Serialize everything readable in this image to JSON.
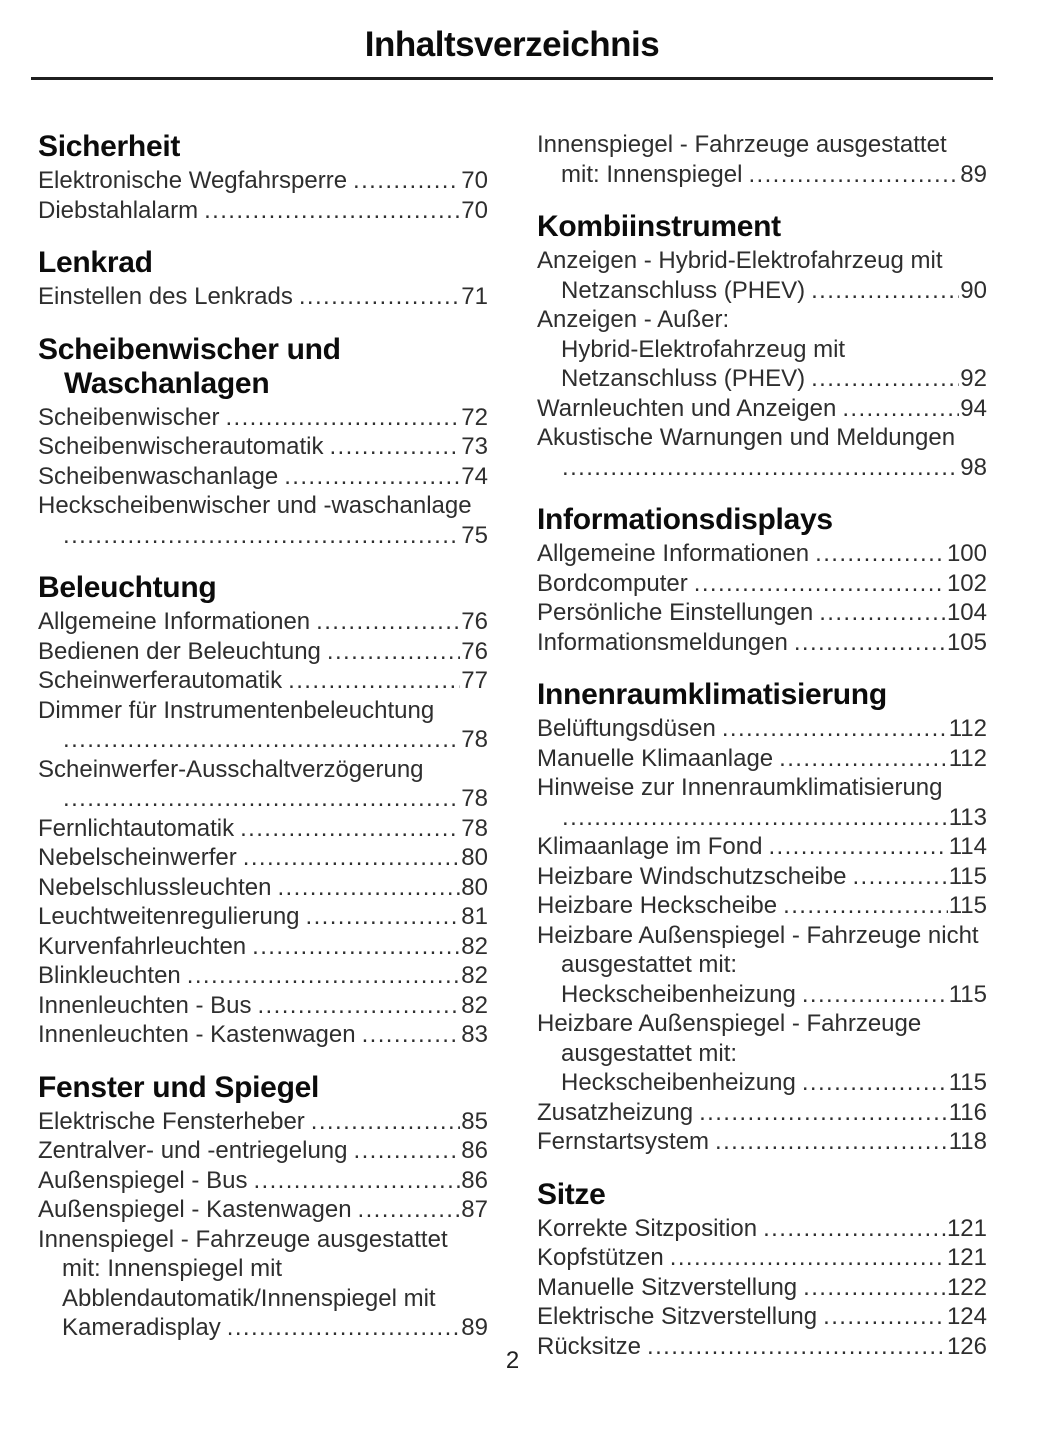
{
  "title": "Inhaltsverzeichnis",
  "page_number": "2",
  "columns": [
    {
      "sections": [
        {
          "heading_lines": [
            "Sicherheit"
          ],
          "entries": [
            {
              "lines": [
                "Elektronische Wegfahrsperre"
              ],
              "page": "70"
            },
            {
              "lines": [
                "Diebstahlalarm"
              ],
              "page": "70"
            }
          ]
        },
        {
          "heading_lines": [
            "Lenkrad"
          ],
          "entries": [
            {
              "lines": [
                "Einstellen des Lenkrads"
              ],
              "page": "71"
            }
          ]
        },
        {
          "heading_lines": [
            "Scheibenwischer und",
            "Waschanlagen"
          ],
          "entries": [
            {
              "lines": [
                "Scheibenwischer"
              ],
              "page": "72"
            },
            {
              "lines": [
                "Scheibenwischerautomatik"
              ],
              "page": "73"
            },
            {
              "lines": [
                "Scheibenwaschanlage"
              ],
              "page": "74"
            },
            {
              "lines": [
                "Heckscheibenwischer und -waschanlage",
                ""
              ],
              "page": "75"
            }
          ]
        },
        {
          "heading_lines": [
            "Beleuchtung"
          ],
          "entries": [
            {
              "lines": [
                "Allgemeine Informationen"
              ],
              "page": "76"
            },
            {
              "lines": [
                "Bedienen der Beleuchtung"
              ],
              "page": "76"
            },
            {
              "lines": [
                "Scheinwerferautomatik"
              ],
              "page": "77"
            },
            {
              "lines": [
                "Dimmer für Instrumentenbeleuchtung",
                ""
              ],
              "page": "78"
            },
            {
              "lines": [
                "Scheinwerfer-Ausschaltverzögerung",
                ""
              ],
              "page": "78"
            },
            {
              "lines": [
                "Fernlichtautomatik"
              ],
              "page": "78"
            },
            {
              "lines": [
                "Nebelscheinwerfer"
              ],
              "page": "80"
            },
            {
              "lines": [
                "Nebelschlussleuchten"
              ],
              "page": "80"
            },
            {
              "lines": [
                "Leuchtweitenregulierung"
              ],
              "page": "81"
            },
            {
              "lines": [
                "Kurvenfahrleuchten"
              ],
              "page": "82"
            },
            {
              "lines": [
                "Blinkleuchten"
              ],
              "page": "82"
            },
            {
              "lines": [
                "Innenleuchten - Bus"
              ],
              "page": "82"
            },
            {
              "lines": [
                "Innenleuchten - Kastenwagen"
              ],
              "page": "83"
            }
          ]
        },
        {
          "heading_lines": [
            "Fenster und Spiegel"
          ],
          "entries": [
            {
              "lines": [
                "Elektrische Fensterheber"
              ],
              "page": "85"
            },
            {
              "lines": [
                "Zentralver- und -entriegelung"
              ],
              "page": "86"
            },
            {
              "lines": [
                "Außenspiegel - Bus"
              ],
              "page": "86"
            },
            {
              "lines": [
                "Außenspiegel - Kastenwagen"
              ],
              "page": "87"
            },
            {
              "lines": [
                "Innenspiegel - Fahrzeuge ausgestattet",
                "mit: Innenspiegel mit",
                "Abblendautomatik/Innenspiegel mit",
                "Kameradisplay"
              ],
              "page": "89"
            }
          ]
        }
      ]
    },
    {
      "sections": [
        {
          "heading_lines": [],
          "entries": [
            {
              "lines": [
                "Innenspiegel - Fahrzeuge ausgestattet",
                "mit: Innenspiegel"
              ],
              "page": "89"
            }
          ]
        },
        {
          "heading_lines": [
            "Kombiinstrument"
          ],
          "entries": [
            {
              "lines": [
                "Anzeigen - Hybrid-Elektrofahrzeug mit",
                "Netzanschluss (PHEV)"
              ],
              "page": "90"
            },
            {
              "lines": [
                "Anzeigen - Außer:",
                "Hybrid-Elektrofahrzeug mit",
                "Netzanschluss (PHEV)"
              ],
              "page": "92"
            },
            {
              "lines": [
                "Warnleuchten und Anzeigen"
              ],
              "page": "94"
            },
            {
              "lines": [
                "Akustische Warnungen und Meldungen",
                ""
              ],
              "page": "98"
            }
          ]
        },
        {
          "heading_lines": [
            "Informationsdisplays"
          ],
          "entries": [
            {
              "lines": [
                "Allgemeine Informationen"
              ],
              "page": "100"
            },
            {
              "lines": [
                "Bordcomputer"
              ],
              "page": "102"
            },
            {
              "lines": [
                "Persönliche Einstellungen"
              ],
              "page": "104"
            },
            {
              "lines": [
                "Informationsmeldungen"
              ],
              "page": "105"
            }
          ]
        },
        {
          "heading_lines": [
            "Innenraumklimatisierung"
          ],
          "entries": [
            {
              "lines": [
                "Belüftungsdüsen"
              ],
              "page": "112"
            },
            {
              "lines": [
                "Manuelle Klimaanlage"
              ],
              "page": "112"
            },
            {
              "lines": [
                "Hinweise zur Innenraumklimatisierung",
                ""
              ],
              "page": "113"
            },
            {
              "lines": [
                "Klimaanlage im Fond"
              ],
              "page": "114"
            },
            {
              "lines": [
                "Heizbare Windschutzscheibe"
              ],
              "page": "115"
            },
            {
              "lines": [
                "Heizbare Heckscheibe"
              ],
              "page": "115"
            },
            {
              "lines": [
                "Heizbare Außenspiegel - Fahrzeuge nicht",
                "ausgestattet mit:",
                "Heckscheibenheizung"
              ],
              "page": "115"
            },
            {
              "lines": [
                "Heizbare Außenspiegel - Fahrzeuge",
                "ausgestattet mit:",
                "Heckscheibenheizung"
              ],
              "page": "115"
            },
            {
              "lines": [
                "Zusatzheizung"
              ],
              "page": "116"
            },
            {
              "lines": [
                "Fernstartsystem"
              ],
              "page": "118"
            }
          ]
        },
        {
          "heading_lines": [
            "Sitze"
          ],
          "entries": [
            {
              "lines": [
                "Korrekte Sitzposition"
              ],
              "page": "121"
            },
            {
              "lines": [
                "Kopfstützen"
              ],
              "page": "121"
            },
            {
              "lines": [
                "Manuelle Sitzverstellung"
              ],
              "page": "122"
            },
            {
              "lines": [
                "Elektrische Sitzverstellung"
              ],
              "page": "124"
            },
            {
              "lines": [
                "Rücksitze"
              ],
              "page": "126"
            }
          ]
        }
      ]
    }
  ]
}
